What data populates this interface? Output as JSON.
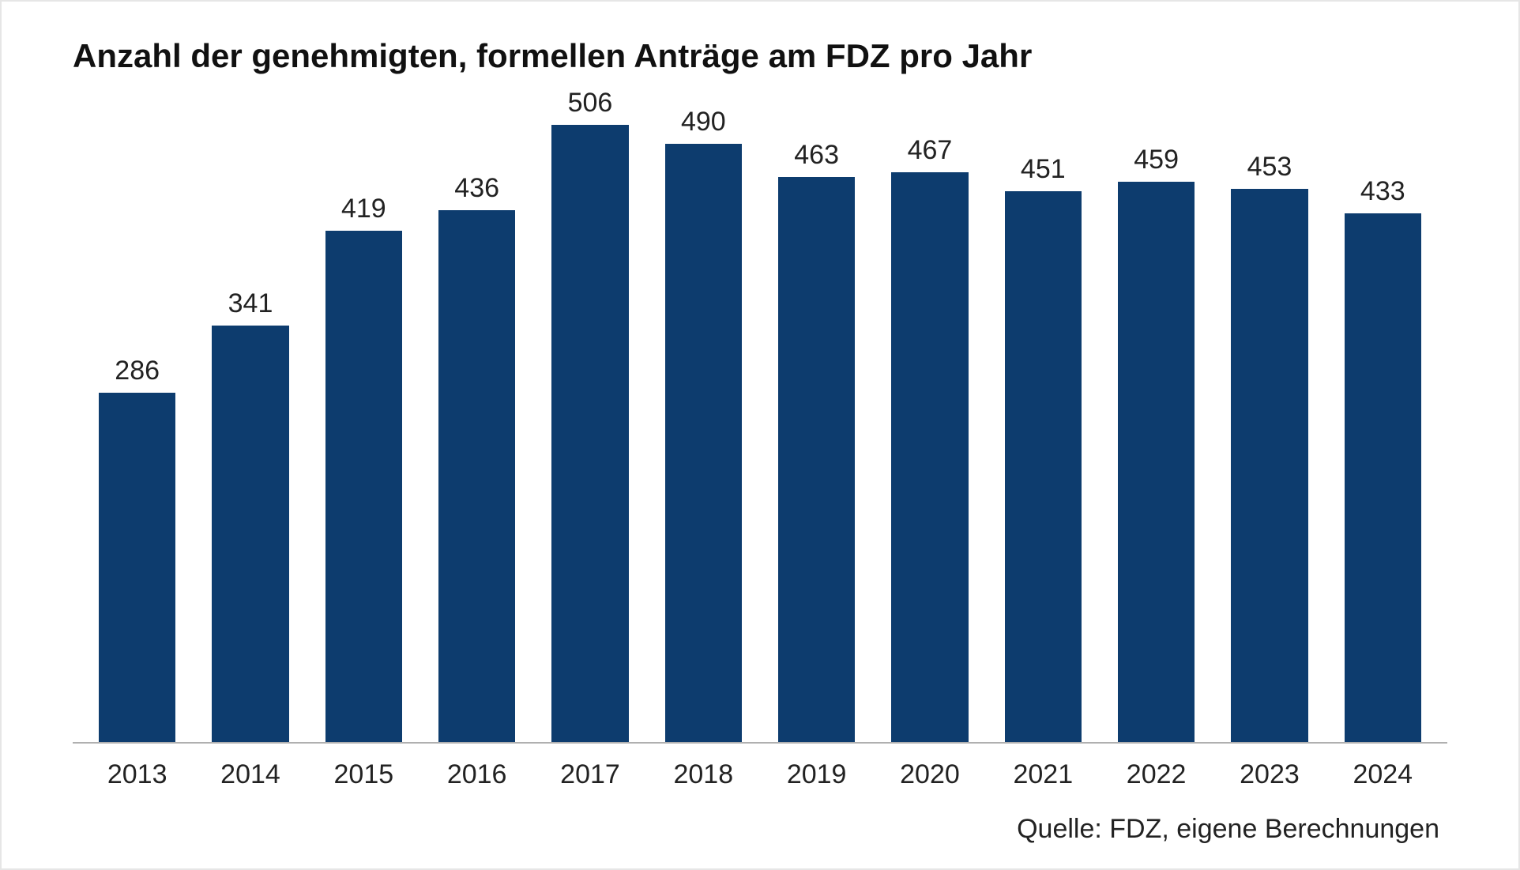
{
  "chart": {
    "type": "bar",
    "title": "Anzahl der genehmigten, formellen Anträge am FDZ pro Jahr",
    "title_fontsize": 42,
    "title_fontweight": 700,
    "title_color": "#111111",
    "categories": [
      "2013",
      "2014",
      "2015",
      "2016",
      "2017",
      "2018",
      "2019",
      "2020",
      "2021",
      "2022",
      "2023",
      "2024"
    ],
    "values": [
      286,
      341,
      419,
      436,
      506,
      490,
      463,
      467,
      451,
      459,
      453,
      433
    ],
    "bar_color": "#0d3c6e",
    "ymax": 540,
    "value_label_fontsize": 34,
    "value_label_color": "#222222",
    "category_label_fontsize": 34,
    "category_label_color": "#222222",
    "axis_line_color": "#b0b0b0",
    "background_color": "#ffffff",
    "frame_border_color": "#e6e6e6",
    "bar_width_ratio": 0.68,
    "source_text": "Quelle: FDZ, eigene Berechnungen",
    "source_fontsize": 34,
    "source_color": "#222222"
  }
}
